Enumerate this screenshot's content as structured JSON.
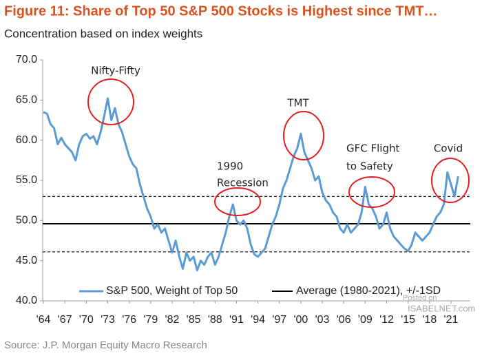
{
  "chart_data": {
    "type": "line",
    "title": "Figure 11: Share of Top 50 S&P 500 Stocks is Highest since TMT…",
    "subtitle": "Concentration based on index weights",
    "source": "Source: J.P. Morgan Equity Macro Research",
    "watermark": [
      "Posted on",
      "ISABELNET.com"
    ],
    "x": [
      1964,
      1964.5,
      1965,
      1965.5,
      1966,
      1966.5,
      1967,
      1967.5,
      1968,
      1968.5,
      1969,
      1969.5,
      1970,
      1970.5,
      1971,
      1971.5,
      1972,
      1972.5,
      1973,
      1973.5,
      1974,
      1974.5,
      1975,
      1975.5,
      1976,
      1976.5,
      1977,
      1977.5,
      1978,
      1978.5,
      1979,
      1979.5,
      1980,
      1980.5,
      1981,
      1981.5,
      1982,
      1982.5,
      1983,
      1983.5,
      1984,
      1984.5,
      1985,
      1985.5,
      1986,
      1986.5,
      1987,
      1987.5,
      1988,
      1988.5,
      1989,
      1989.5,
      1990,
      1990.5,
      1991,
      1991.5,
      1992,
      1992.5,
      1993,
      1993.5,
      1994,
      1994.5,
      1995,
      1995.5,
      1996,
      1996.5,
      1997,
      1997.5,
      1998,
      1998.5,
      1999,
      1999.5,
      2000,
      2000.5,
      2001,
      2001.5,
      2002,
      2002.5,
      2003,
      2003.5,
      2004,
      2004.5,
      2005,
      2005.5,
      2006,
      2006.5,
      2007,
      2007.5,
      2008,
      2008.5,
      2009,
      2009.5,
      2010,
      2010.5,
      2011,
      2011.5,
      2012,
      2012.5,
      2013,
      2013.5,
      2014,
      2014.5,
      2015,
      2015.5,
      2016,
      2016.5,
      2017,
      2017.5,
      2018,
      2018.5,
      2019,
      2019.5,
      2020,
      2020.5,
      2021,
      2021.5,
      2022
    ],
    "series": [
      {
        "name": "S&P 500, Weight of Top 50",
        "color": "#5b9bd5",
        "values": [
          63.5,
          63.3,
          62.0,
          61.5,
          59.5,
          60.3,
          59.5,
          59.0,
          58.5,
          57.5,
          59.5,
          60.5,
          60.8,
          60.2,
          60.5,
          59.5,
          61.0,
          63.0,
          65.2,
          62.5,
          64.0,
          62.0,
          61.0,
          59.5,
          58.0,
          57.0,
          56.5,
          54.5,
          53.0,
          51.5,
          50.5,
          49.0,
          49.5,
          48.5,
          49.0,
          47.5,
          46.0,
          47.5,
          45.5,
          44.0,
          46.0,
          45.0,
          45.5,
          43.8,
          45.0,
          44.5,
          45.5,
          46.0,
          44.5,
          45.5,
          47.0,
          48.5,
          50.5,
          52.0,
          50.0,
          49.5,
          50.0,
          49.0,
          47.0,
          45.8,
          45.5,
          46.0,
          46.5,
          48.0,
          49.5,
          50.5,
          52.0,
          54.0,
          55.0,
          56.5,
          58.0,
          59.0,
          60.8,
          58.5,
          57.5,
          56.5,
          55.0,
          55.5,
          53.5,
          52.5,
          52.0,
          51.0,
          50.5,
          49.0,
          48.5,
          49.5,
          48.5,
          49.0,
          49.5,
          51.0,
          54.2,
          52.0,
          51.5,
          50.5,
          49.0,
          49.5,
          51.0,
          49.0,
          48.0,
          47.5,
          47.0,
          46.5,
          46.2,
          47.0,
          48.5,
          48.0,
          47.5,
          48.0,
          48.5,
          49.5,
          50.5,
          51.0,
          52.0,
          56.0,
          54.5,
          53.0,
          55.5
        ]
      }
    ],
    "reference_lines": [
      {
        "name": "Average (1980-2021), +/-1SD",
        "value": 49.6,
        "color": "#000000",
        "dashed": false
      },
      {
        "value": 53.0,
        "color": "#000000",
        "dashed": true
      },
      {
        "value": 46.1,
        "color": "#000000",
        "dashed": true
      }
    ],
    "annotations": [
      {
        "lines": [
          "Nifty-Fifty"
        ]
      },
      {
        "lines": [
          "1990",
          "Recession"
        ]
      },
      {
        "lines": [
          "TMT"
        ]
      },
      {
        "lines": [
          "GFC Flight",
          "to Safety"
        ]
      },
      {
        "lines": [
          "Covid"
        ]
      }
    ],
    "xlim": [
      1963.9,
      2023.7
    ],
    "xticks": [
      {
        "value": 1964,
        "label": "'64"
      },
      {
        "value": 1967,
        "label": "'67"
      },
      {
        "value": 1970,
        "label": "'70"
      },
      {
        "value": 1973,
        "label": "'73"
      },
      {
        "value": 1976,
        "label": "'76"
      },
      {
        "value": 1979,
        "label": "'79"
      },
      {
        "value": 1982,
        "label": "'82"
      },
      {
        "value": 1985,
        "label": "'85"
      },
      {
        "value": 1988,
        "label": "'88"
      },
      {
        "value": 1991,
        "label": "'91"
      },
      {
        "value": 1994,
        "label": "'94"
      },
      {
        "value": 1997,
        "label": "'97"
      },
      {
        "value": 2000,
        "label": "'00"
      },
      {
        "value": 2003,
        "label": "'03"
      },
      {
        "value": 2006,
        "label": "'06"
      },
      {
        "value": 2009,
        "label": "'09"
      },
      {
        "value": 2012,
        "label": "'12"
      },
      {
        "value": 2015,
        "label": "'15"
      },
      {
        "value": 2018,
        "label": "'18"
      },
      {
        "value": 2021,
        "label": "'21"
      }
    ],
    "ylim": [
      40,
      70
    ],
    "yticks": [
      {
        "value": 40,
        "label": "40.0"
      },
      {
        "value": 45,
        "label": "45.0"
      },
      {
        "value": 50,
        "label": "50.0"
      },
      {
        "value": 55,
        "label": "55.0"
      },
      {
        "value": 60,
        "label": "60.0"
      },
      {
        "value": 65,
        "label": "65.0"
      },
      {
        "value": 70,
        "label": "70.0"
      }
    ],
    "title_color": "#d9531e",
    "annotation_color": "#e02020"
  }
}
